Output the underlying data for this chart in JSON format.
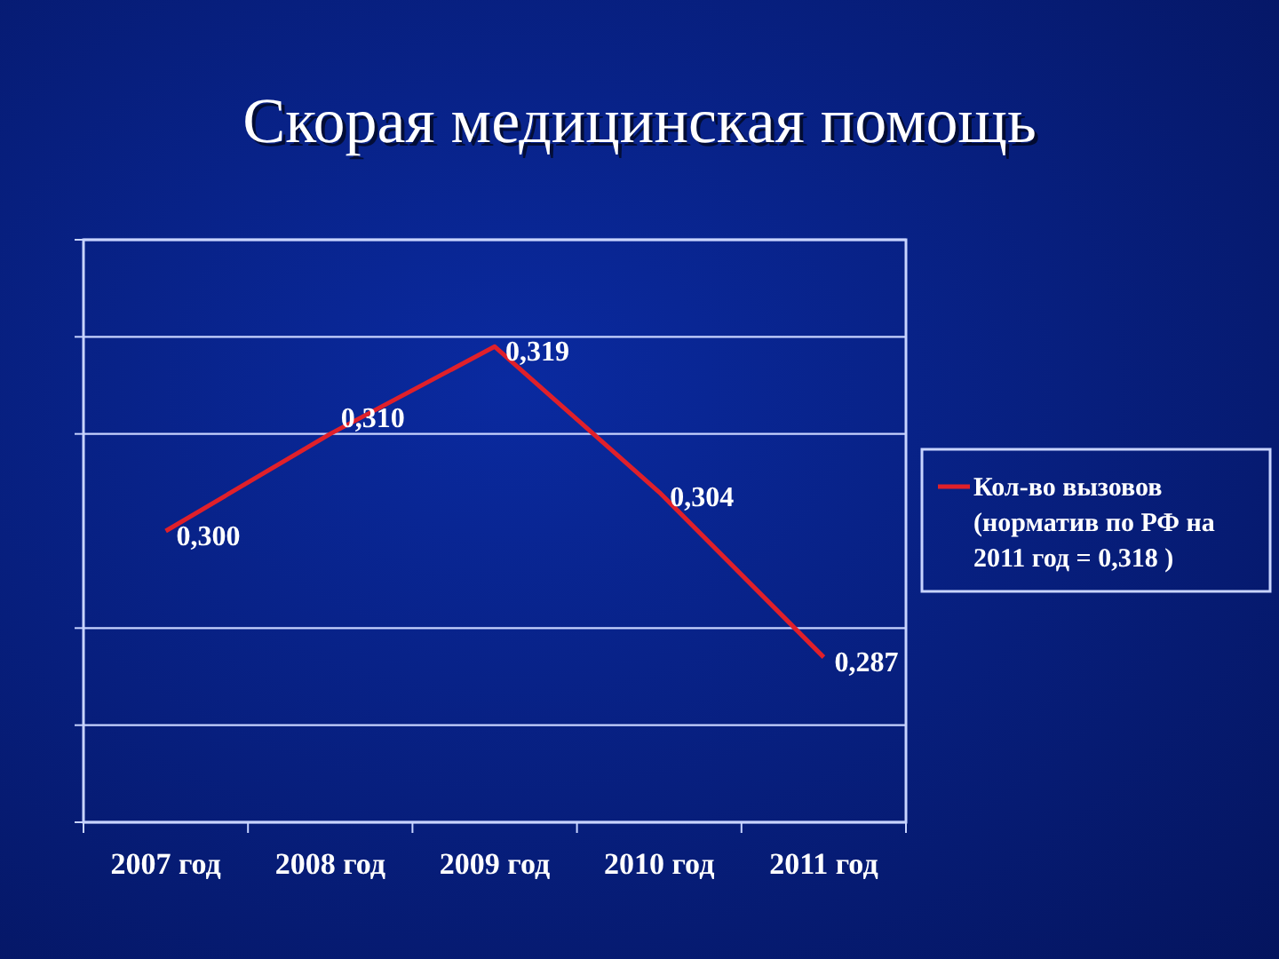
{
  "chart_data": {
    "type": "line",
    "title": "Скорая медицинская помощь",
    "categories": [
      "2007 год",
      "2008 год",
      "2009 год",
      "2010 год",
      "2011 год"
    ],
    "series": [
      {
        "name": "Кол-во вызовов (норматив по РФ на 2011 год = 0,318 )",
        "color": "#e0202a",
        "values": [
          0.3,
          0.31,
          0.319,
          0.304,
          0.287
        ],
        "value_labels": [
          "0,300",
          "0,310",
          "0,319",
          "0,304",
          "0,287"
        ]
      }
    ],
    "ylim": [
      0.27,
      0.33
    ],
    "yticks": [
      {
        "value": 0.27,
        "label": null
      },
      {
        "value": 0.28,
        "label": null
      },
      {
        "value": 0.29,
        "label": null
      },
      {
        "value": 0.31,
        "label": null
      },
      {
        "value": 0.32,
        "label": null
      },
      {
        "value": 0.33,
        "label": null
      }
    ],
    "tick_labels": "x",
    "grid": "y",
    "legend": "right",
    "marker": "none",
    "line_style": "solid"
  }
}
